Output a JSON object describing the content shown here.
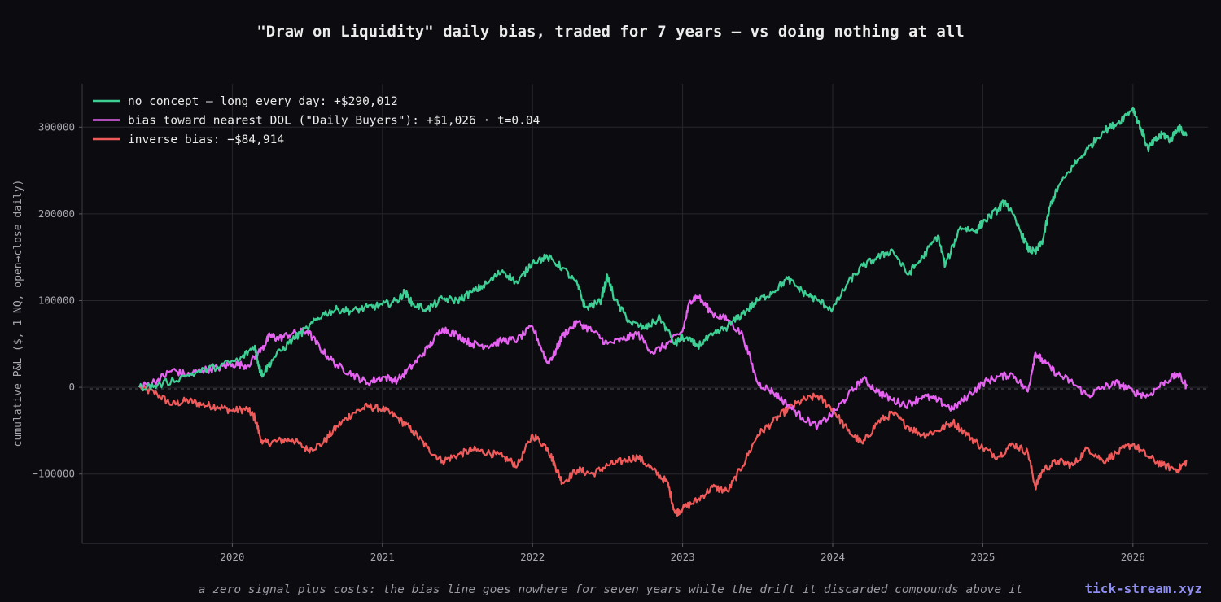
{
  "chart_data": {
    "type": "line",
    "title": "\"Draw on Liquidity\" daily bias, traded for 7 years — vs doing nothing at all",
    "xlabel": "",
    "ylabel": "cumulative P&L ($, 1 NQ, open→close daily)",
    "xlim": [
      2019.0,
      2026.5
    ],
    "ylim": [
      -180000,
      350000
    ],
    "x_ticks": [
      2020,
      2021,
      2022,
      2023,
      2024,
      2025,
      2026
    ],
    "x_tick_labels": [
      "2020",
      "2021",
      "2022",
      "2023",
      "2024",
      "2025",
      "2026"
    ],
    "y_ticks": [
      -100000,
      0,
      100000,
      200000,
      300000
    ],
    "y_tick_labels": [
      "−100000",
      "0",
      "100000",
      "200000",
      "300000"
    ],
    "grid": true,
    "zero_line": "dashed",
    "legend_position": "top-left",
    "series": [
      {
        "name": "no concept — long every day:   +$290,012",
        "color": "#3ecf95",
        "points": [
          [
            2019.38,
            0
          ],
          [
            2019.5,
            2000
          ],
          [
            2019.7,
            14000
          ],
          [
            2019.9,
            24000
          ],
          [
            2020.05,
            32000
          ],
          [
            2020.15,
            48000
          ],
          [
            2020.18,
            22000
          ],
          [
            2020.2,
            15000
          ],
          [
            2020.28,
            35000
          ],
          [
            2020.4,
            55000
          ],
          [
            2020.5,
            68000
          ],
          [
            2020.6,
            84000
          ],
          [
            2020.7,
            90000
          ],
          [
            2020.8,
            88000
          ],
          [
            2020.9,
            92000
          ],
          [
            2021.0,
            95000
          ],
          [
            2021.1,
            100000
          ],
          [
            2021.15,
            110000
          ],
          [
            2021.2,
            96000
          ],
          [
            2021.3,
            90000
          ],
          [
            2021.4,
            102000
          ],
          [
            2021.5,
            100000
          ],
          [
            2021.6,
            110000
          ],
          [
            2021.7,
            120000
          ],
          [
            2021.8,
            135000
          ],
          [
            2021.9,
            120000
          ],
          [
            2022.0,
            145000
          ],
          [
            2022.1,
            150000
          ],
          [
            2022.2,
            138000
          ],
          [
            2022.3,
            118000
          ],
          [
            2022.35,
            92000
          ],
          [
            2022.45,
            98000
          ],
          [
            2022.5,
            128000
          ],
          [
            2022.55,
            100000
          ],
          [
            2022.65,
            75000
          ],
          [
            2022.75,
            68000
          ],
          [
            2022.85,
            80000
          ],
          [
            2022.95,
            50000
          ],
          [
            2023.0,
            58000
          ],
          [
            2023.1,
            48000
          ],
          [
            2023.2,
            60000
          ],
          [
            2023.3,
            70000
          ],
          [
            2023.4,
            85000
          ],
          [
            2023.5,
            100000
          ],
          [
            2023.6,
            110000
          ],
          [
            2023.7,
            125000
          ],
          [
            2023.8,
            110000
          ],
          [
            2023.9,
            100000
          ],
          [
            2024.0,
            90000
          ],
          [
            2024.1,
            120000
          ],
          [
            2024.2,
            140000
          ],
          [
            2024.3,
            150000
          ],
          [
            2024.4,
            158000
          ],
          [
            2024.5,
            130000
          ],
          [
            2024.6,
            150000
          ],
          [
            2024.7,
            175000
          ],
          [
            2024.75,
            140000
          ],
          [
            2024.85,
            185000
          ],
          [
            2024.95,
            180000
          ],
          [
            2025.0,
            190000
          ],
          [
            2025.1,
            205000
          ],
          [
            2025.15,
            215000
          ],
          [
            2025.25,
            180000
          ],
          [
            2025.3,
            160000
          ],
          [
            2025.35,
            155000
          ],
          [
            2025.4,
            170000
          ],
          [
            2025.45,
            210000
          ],
          [
            2025.5,
            230000
          ],
          [
            2025.6,
            255000
          ],
          [
            2025.7,
            275000
          ],
          [
            2025.8,
            295000
          ],
          [
            2025.9,
            305000
          ],
          [
            2026.0,
            322000
          ],
          [
            2026.05,
            300000
          ],
          [
            2026.1,
            275000
          ],
          [
            2026.15,
            285000
          ],
          [
            2026.2,
            292000
          ],
          [
            2026.25,
            285000
          ],
          [
            2026.3,
            300000
          ],
          [
            2026.36,
            290012
          ]
        ]
      },
      {
        "name": "bias toward nearest DOL (\"Daily Buyers\"):   +$1,026 · t=0.04",
        "color": "#e563f0",
        "points": [
          [
            2019.38,
            0
          ],
          [
            2019.5,
            8000
          ],
          [
            2019.6,
            20000
          ],
          [
            2019.7,
            14000
          ],
          [
            2019.8,
            20000
          ],
          [
            2019.9,
            22000
          ],
          [
            2020.0,
            27000
          ],
          [
            2020.1,
            25000
          ],
          [
            2020.2,
            45000
          ],
          [
            2020.25,
            60000
          ],
          [
            2020.3,
            56000
          ],
          [
            2020.4,
            62000
          ],
          [
            2020.5,
            65000
          ],
          [
            2020.6,
            42000
          ],
          [
            2020.7,
            25000
          ],
          [
            2020.8,
            15000
          ],
          [
            2020.9,
            5000
          ],
          [
            2021.0,
            12000
          ],
          [
            2021.1,
            8000
          ],
          [
            2021.2,
            25000
          ],
          [
            2021.3,
            45000
          ],
          [
            2021.4,
            68000
          ],
          [
            2021.5,
            60000
          ],
          [
            2021.6,
            50000
          ],
          [
            2021.7,
            48000
          ],
          [
            2021.8,
            54000
          ],
          [
            2021.9,
            55000
          ],
          [
            2022.0,
            70000
          ],
          [
            2022.1,
            28000
          ],
          [
            2022.15,
            40000
          ],
          [
            2022.2,
            60000
          ],
          [
            2022.3,
            75000
          ],
          [
            2022.4,
            65000
          ],
          [
            2022.5,
            50000
          ],
          [
            2022.6,
            55000
          ],
          [
            2022.7,
            62000
          ],
          [
            2022.8,
            40000
          ],
          [
            2022.9,
            50000
          ],
          [
            2023.0,
            65000
          ],
          [
            2023.05,
            100000
          ],
          [
            2023.1,
            105000
          ],
          [
            2023.2,
            85000
          ],
          [
            2023.3,
            78000
          ],
          [
            2023.4,
            60000
          ],
          [
            2023.5,
            5000
          ],
          [
            2023.6,
            -5000
          ],
          [
            2023.7,
            -20000
          ],
          [
            2023.8,
            -35000
          ],
          [
            2023.9,
            -45000
          ],
          [
            2024.0,
            -30000
          ],
          [
            2024.1,
            -10000
          ],
          [
            2024.2,
            10000
          ],
          [
            2024.3,
            -5000
          ],
          [
            2024.4,
            -15000
          ],
          [
            2024.5,
            -20000
          ],
          [
            2024.6,
            -10000
          ],
          [
            2024.7,
            -15000
          ],
          [
            2024.8,
            -25000
          ],
          [
            2024.9,
            -10000
          ],
          [
            2025.0,
            5000
          ],
          [
            2025.1,
            12000
          ],
          [
            2025.2,
            15000
          ],
          [
            2025.3,
            -5000
          ],
          [
            2025.35,
            40000
          ],
          [
            2025.4,
            30000
          ],
          [
            2025.5,
            15000
          ],
          [
            2025.6,
            5000
          ],
          [
            2025.7,
            -10000
          ],
          [
            2025.8,
            0
          ],
          [
            2025.9,
            5000
          ],
          [
            2026.0,
            -5000
          ],
          [
            2026.1,
            -10000
          ],
          [
            2026.2,
            5000
          ],
          [
            2026.3,
            15000
          ],
          [
            2026.36,
            1026
          ]
        ]
      },
      {
        "name": "inverse bias:   −$84,914",
        "color": "#f05a5a",
        "points": [
          [
            2019.38,
            0
          ],
          [
            2019.5,
            -8000
          ],
          [
            2019.6,
            -20000
          ],
          [
            2019.7,
            -15000
          ],
          [
            2019.8,
            -20000
          ],
          [
            2019.9,
            -22000
          ],
          [
            2020.0,
            -27000
          ],
          [
            2020.1,
            -25000
          ],
          [
            2020.15,
            -35000
          ],
          [
            2020.2,
            -65000
          ],
          [
            2020.3,
            -62000
          ],
          [
            2020.4,
            -60000
          ],
          [
            2020.5,
            -72000
          ],
          [
            2020.6,
            -65000
          ],
          [
            2020.7,
            -45000
          ],
          [
            2020.8,
            -30000
          ],
          [
            2020.9,
            -22000
          ],
          [
            2021.0,
            -25000
          ],
          [
            2021.1,
            -35000
          ],
          [
            2021.2,
            -50000
          ],
          [
            2021.3,
            -70000
          ],
          [
            2021.4,
            -85000
          ],
          [
            2021.5,
            -78000
          ],
          [
            2021.6,
            -72000
          ],
          [
            2021.7,
            -75000
          ],
          [
            2021.8,
            -80000
          ],
          [
            2021.9,
            -90000
          ],
          [
            2022.0,
            -55000
          ],
          [
            2022.1,
            -70000
          ],
          [
            2022.15,
            -90000
          ],
          [
            2022.2,
            -110000
          ],
          [
            2022.3,
            -95000
          ],
          [
            2022.4,
            -100000
          ],
          [
            2022.5,
            -90000
          ],
          [
            2022.6,
            -85000
          ],
          [
            2022.7,
            -80000
          ],
          [
            2022.8,
            -95000
          ],
          [
            2022.9,
            -110000
          ],
          [
            2022.95,
            -145000
          ],
          [
            2023.0,
            -140000
          ],
          [
            2023.1,
            -130000
          ],
          [
            2023.2,
            -115000
          ],
          [
            2023.3,
            -120000
          ],
          [
            2023.4,
            -90000
          ],
          [
            2023.5,
            -55000
          ],
          [
            2023.6,
            -40000
          ],
          [
            2023.7,
            -25000
          ],
          [
            2023.8,
            -15000
          ],
          [
            2023.9,
            -10000
          ],
          [
            2024.0,
            -25000
          ],
          [
            2024.1,
            -50000
          ],
          [
            2024.2,
            -65000
          ],
          [
            2024.3,
            -40000
          ],
          [
            2024.4,
            -30000
          ],
          [
            2024.5,
            -45000
          ],
          [
            2024.6,
            -55000
          ],
          [
            2024.7,
            -50000
          ],
          [
            2024.8,
            -40000
          ],
          [
            2024.9,
            -55000
          ],
          [
            2025.0,
            -70000
          ],
          [
            2025.1,
            -80000
          ],
          [
            2025.2,
            -65000
          ],
          [
            2025.3,
            -75000
          ],
          [
            2025.35,
            -115000
          ],
          [
            2025.4,
            -95000
          ],
          [
            2025.5,
            -85000
          ],
          [
            2025.6,
            -90000
          ],
          [
            2025.7,
            -70000
          ],
          [
            2025.8,
            -85000
          ],
          [
            2025.9,
            -75000
          ],
          [
            2026.0,
            -65000
          ],
          [
            2026.1,
            -80000
          ],
          [
            2026.2,
            -90000
          ],
          [
            2026.3,
            -95000
          ],
          [
            2026.36,
            -84914
          ]
        ]
      }
    ]
  },
  "caption": "a zero signal plus costs: the bias line goes nowhere for seven years while the drift it discarded compounds above it",
  "brand": "tick-stream.xyz",
  "colors": {
    "background": "#0c0c10",
    "grid": "#26262c",
    "axis": "#3a3a42"
  }
}
